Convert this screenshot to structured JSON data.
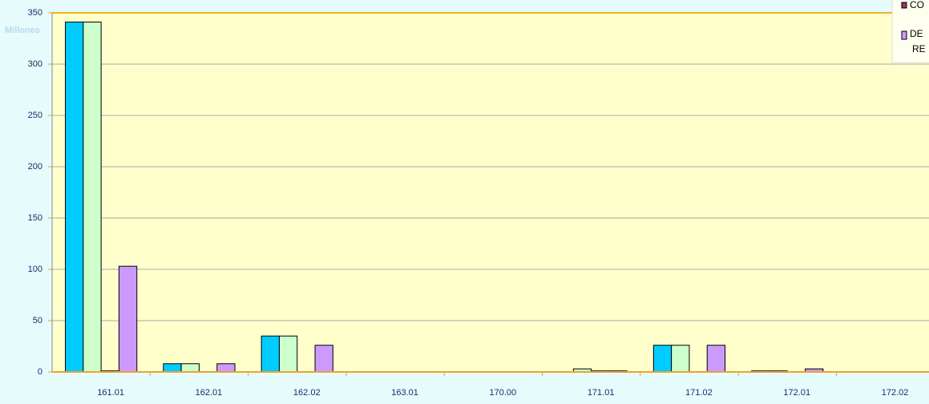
{
  "chart_data": {
    "type": "bar",
    "y_unit_label": "Millones",
    "categories": [
      "161.01",
      "162.01",
      "162.02",
      "163.01",
      "170.00",
      "171.01",
      "171.02",
      "172.01",
      "172.02"
    ],
    "series": [
      {
        "name": null,
        "color": "#00ccff",
        "values": [
          341,
          8,
          35,
          0,
          0,
          0,
          26,
          1,
          0
        ]
      },
      {
        "name": null,
        "color": "#ccffcc",
        "values": [
          341,
          8,
          35,
          0,
          0,
          3,
          26,
          1,
          0
        ]
      },
      {
        "name": "CO",
        "color": "#993366",
        "values": [
          1,
          0,
          0,
          0,
          0,
          1,
          0,
          0,
          0
        ]
      },
      {
        "name": [
          "DE",
          "RE"
        ],
        "color": "#cc99ff",
        "values": [
          103,
          8,
          26,
          0,
          0,
          1,
          26,
          3,
          0
        ]
      }
    ],
    "ylim": [
      0,
      350
    ],
    "yticks": [
      0,
      50,
      100,
      150,
      200,
      250,
      300,
      350
    ],
    "grid": true,
    "legend": "top-right"
  }
}
